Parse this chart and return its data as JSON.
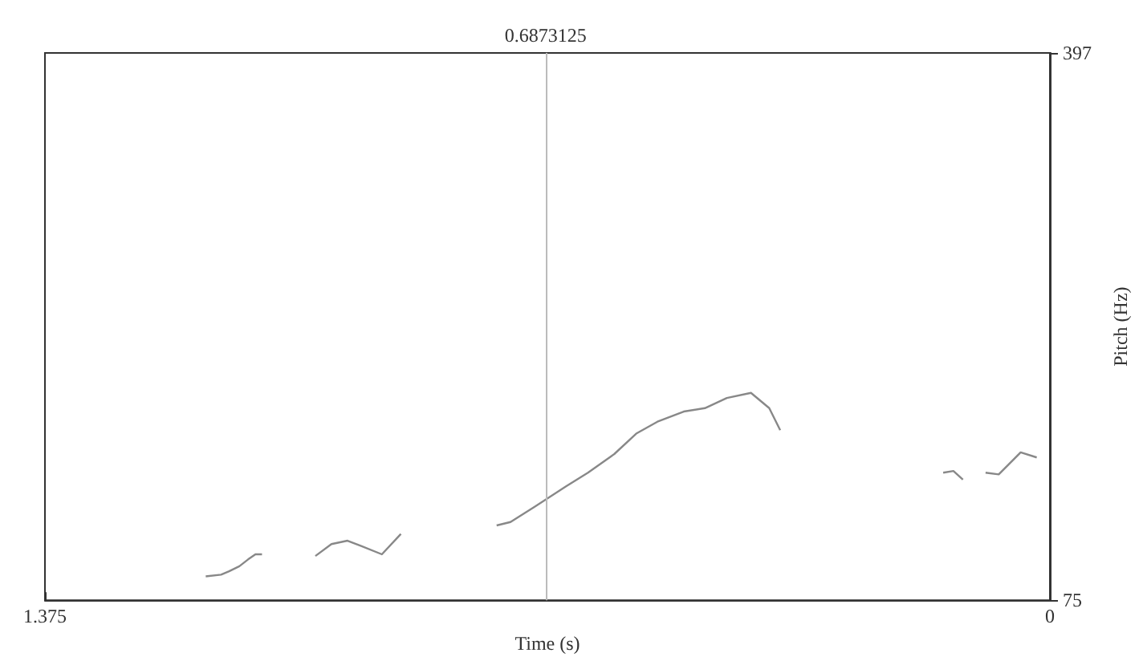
{
  "chart_data": {
    "type": "line",
    "xlabel": "Time (s)",
    "ylabel": "Pitch (Hz)",
    "xlim": [
      1.375,
      0
    ],
    "xticks": [
      0,
      1.375
    ],
    "ylim": [
      75,
      397
    ],
    "yticks": [
      75,
      397
    ],
    "grid": false,
    "marker": "none",
    "line_style": "solid",
    "ref_lines": [
      {
        "axis": "x",
        "value": 0.6873125,
        "label": "0.6873125",
        "color": "#bbbbbb"
      }
    ],
    "series": [
      {
        "color": "#888888",
        "x": [
          1.155,
          1.134,
          1.123,
          1.109,
          1.097,
          1.087,
          1.078,
          1.04,
          1.005,
          0.983,
          0.961,
          0.943,
          0.914,
          0.888,
          0.82,
          0.757,
          0.738,
          0.705,
          0.662,
          0.632,
          0.596,
          0.566,
          0.537,
          0.501,
          0.472,
          0.442,
          0.409,
          0.384,
          0.369,
          0.25,
          0.146,
          0.132,
          0.119,
          0.1,
          0.088,
          0.07,
          0.04,
          0.018
        ],
        "values": [
          89,
          90,
          92,
          95,
          99,
          102,
          102,
          null,
          101,
          108,
          110,
          107,
          102,
          114,
          null,
          119,
          121,
          130,
          142,
          150,
          161,
          173,
          180,
          186,
          188,
          194,
          197,
          188,
          175,
          null,
          150,
          151,
          146,
          null,
          150,
          149,
          162,
          159
        ]
      }
    ]
  }
}
